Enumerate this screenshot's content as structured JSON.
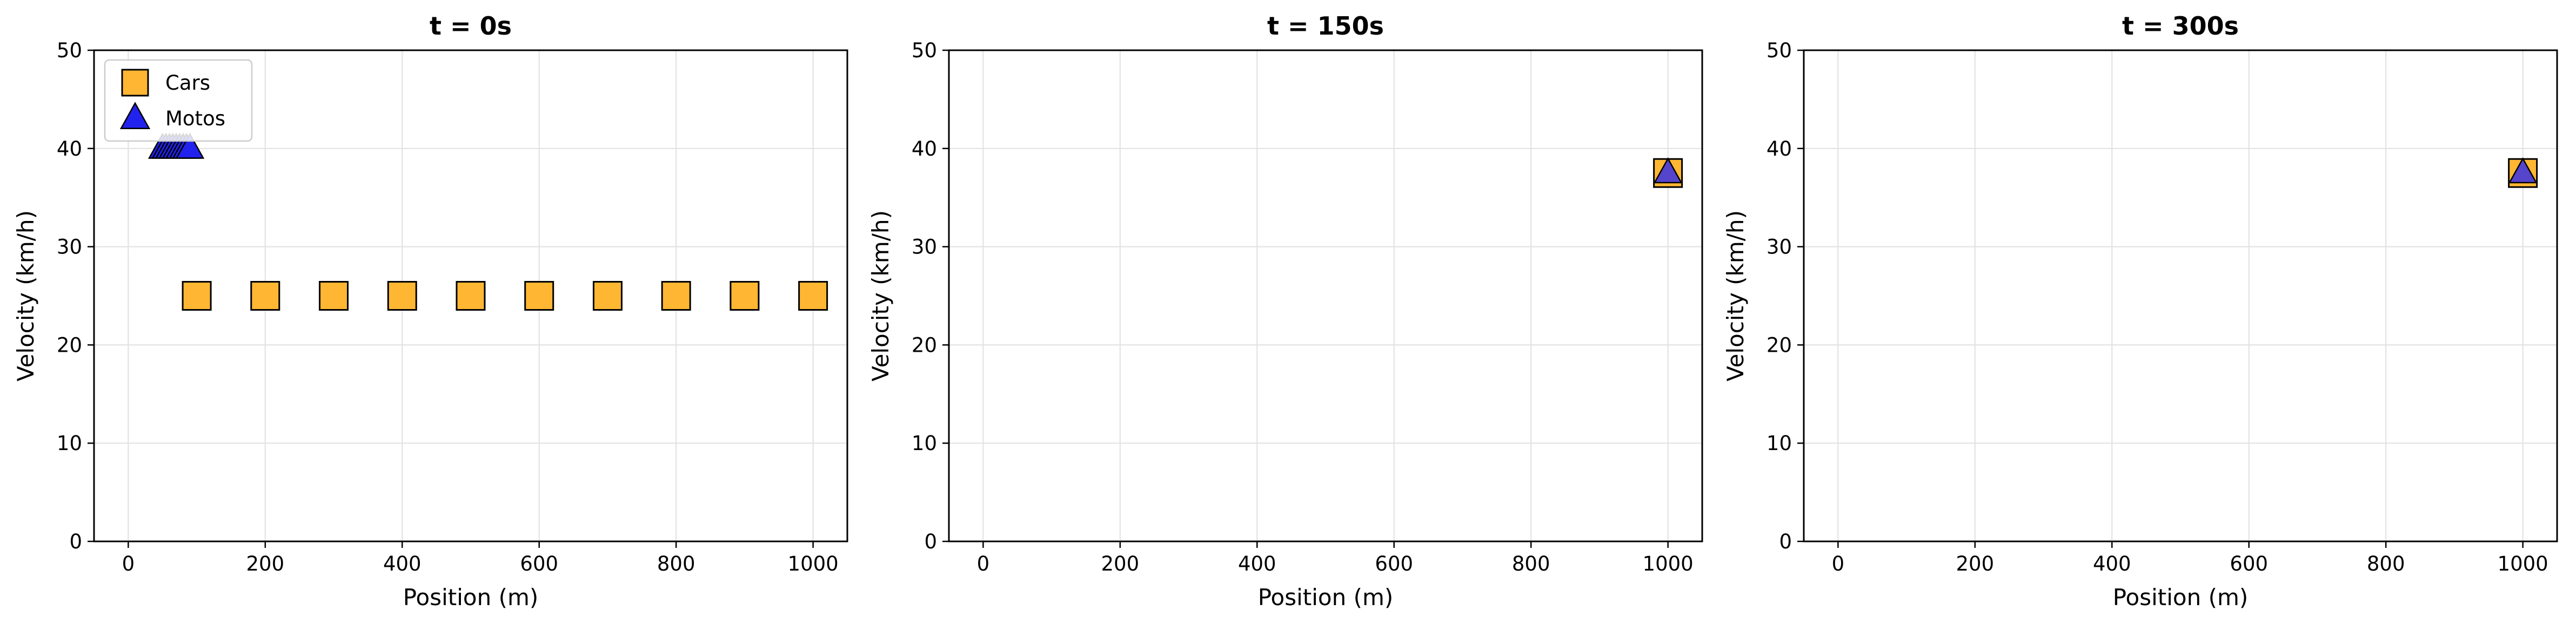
{
  "chart_data": [
    {
      "type": "scatter",
      "title": "t = 0s",
      "xlabel": "Position (m)",
      "ylabel": "Velocity (km/h)",
      "xlim": [
        -50,
        1050
      ],
      "ylim": [
        0,
        50
      ],
      "xticks": [
        0,
        200,
        400,
        600,
        800,
        1000
      ],
      "yticks": [
        0,
        10,
        20,
        30,
        40,
        50
      ],
      "grid": true,
      "legend": {
        "placement": "top-left",
        "entries": [
          "Cars",
          "Motos"
        ]
      },
      "series": [
        {
          "name": "Cars",
          "marker": "square",
          "color": "#FFB733",
          "points": [
            [
              100,
              25
            ],
            [
              200,
              25
            ],
            [
              300,
              25
            ],
            [
              400,
              25
            ],
            [
              500,
              25
            ],
            [
              600,
              25
            ],
            [
              700,
              25
            ],
            [
              800,
              25
            ],
            [
              900,
              25
            ],
            [
              1000,
              25
            ]
          ]
        },
        {
          "name": "Motos",
          "marker": "triangle",
          "color": "#2222EE",
          "points": [
            [
              50,
              40
            ],
            [
              55,
              40
            ],
            [
              60,
              40
            ],
            [
              65,
              40
            ],
            [
              70,
              40
            ],
            [
              75,
              40
            ],
            [
              80,
              40
            ],
            [
              85,
              40
            ],
            [
              90,
              40
            ]
          ]
        }
      ]
    },
    {
      "type": "scatter",
      "title": "t = 150s",
      "xlabel": "Position (m)",
      "ylabel": "Velocity (km/h)",
      "xlim": [
        -50,
        1050
      ],
      "ylim": [
        0,
        50
      ],
      "xticks": [
        0,
        200,
        400,
        600,
        800,
        1000
      ],
      "yticks": [
        0,
        10,
        20,
        30,
        40,
        50
      ],
      "grid": true,
      "series": [
        {
          "name": "Cars",
          "marker": "square",
          "color": "#FFB733",
          "points": [
            [
              1000,
              37.5
            ]
          ]
        },
        {
          "name": "Motos",
          "marker": "triangle",
          "color": "#5544CC",
          "points": [
            [
              1000,
              37.5
            ]
          ]
        }
      ]
    },
    {
      "type": "scatter",
      "title": "t = 300s",
      "xlabel": "Position (m)",
      "ylabel": "Velocity (km/h)",
      "xlim": [
        -50,
        1050
      ],
      "ylim": [
        0,
        50
      ],
      "xticks": [
        0,
        200,
        400,
        600,
        800,
        1000
      ],
      "yticks": [
        0,
        10,
        20,
        30,
        40,
        50
      ],
      "grid": true,
      "series": [
        {
          "name": "Cars",
          "marker": "square",
          "color": "#FFB733",
          "points": [
            [
              1000,
              37.5
            ]
          ]
        },
        {
          "name": "Motos",
          "marker": "triangle",
          "color": "#5544CC",
          "points": [
            [
              1000,
              37.5
            ]
          ]
        }
      ]
    }
  ]
}
